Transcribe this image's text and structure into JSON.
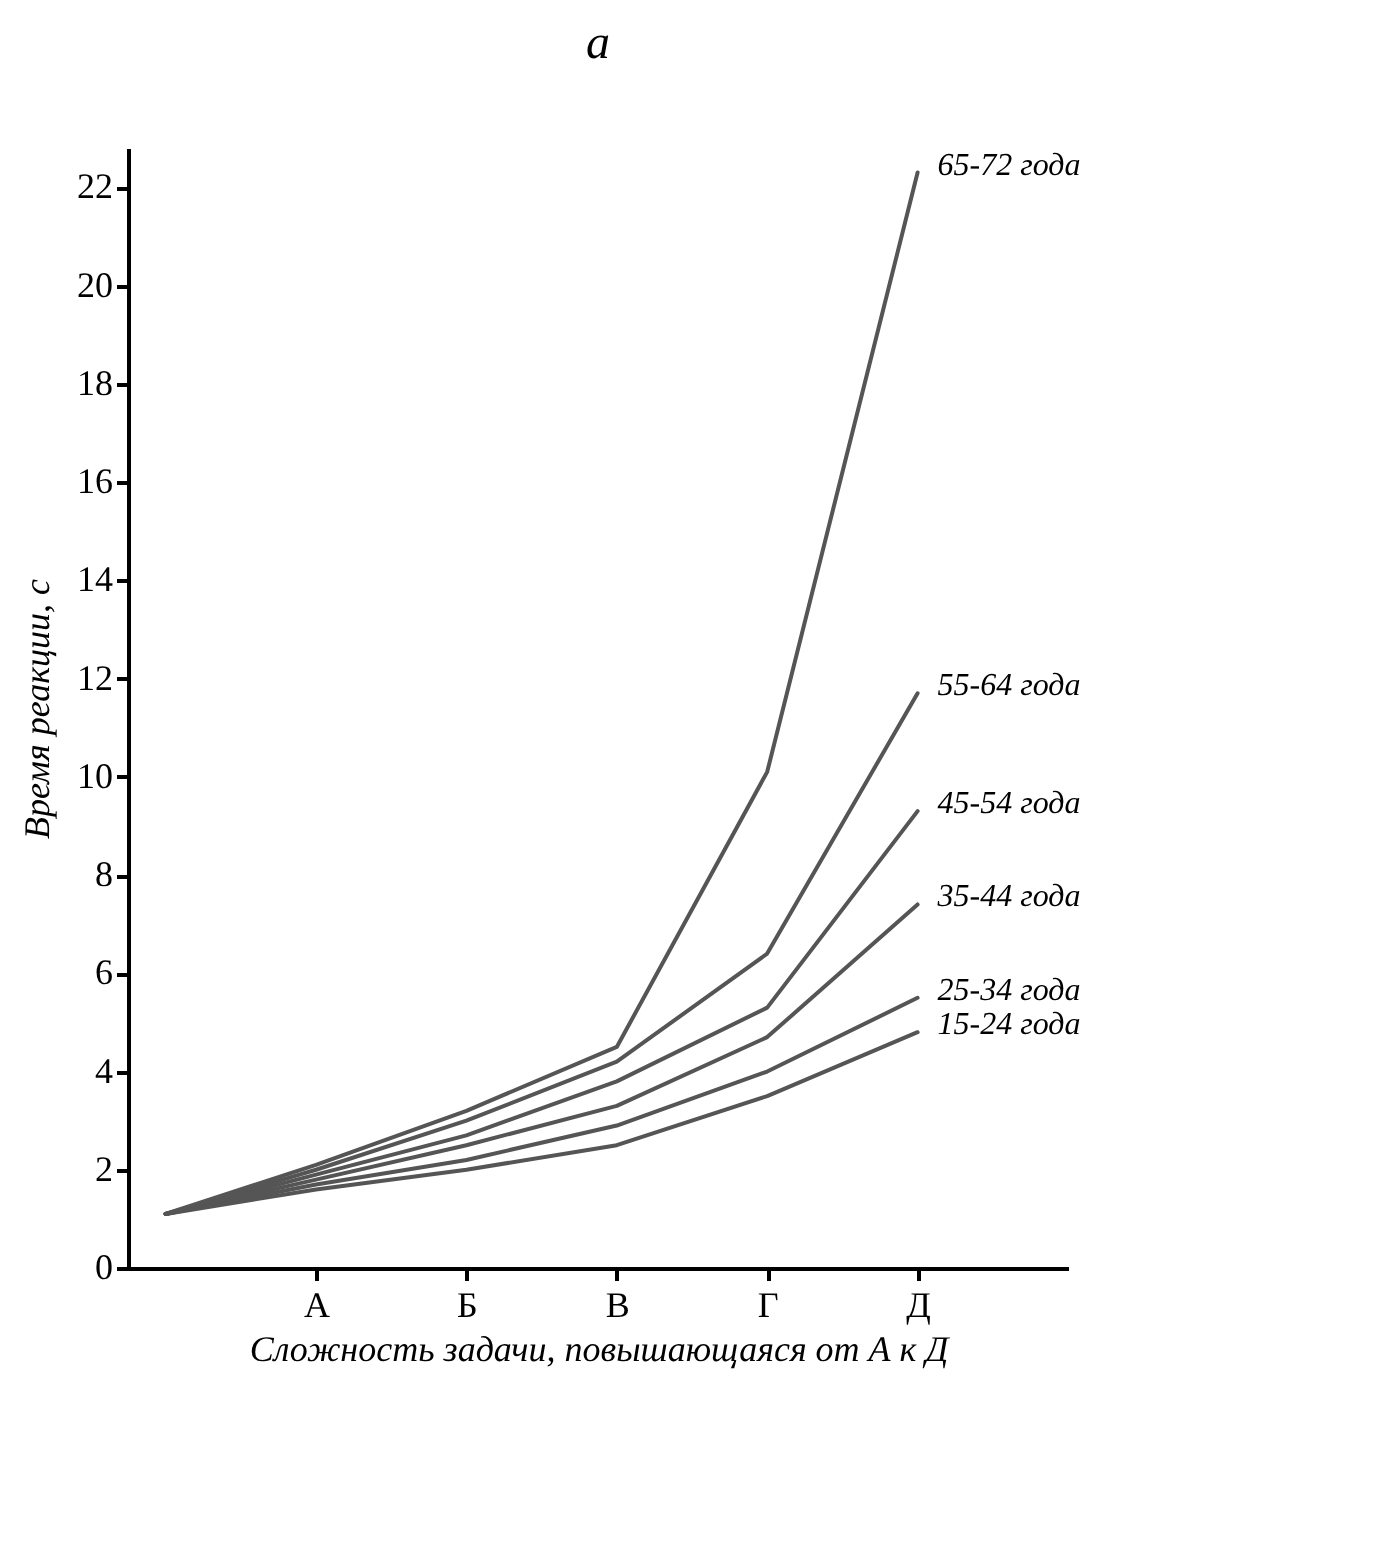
{
  "chart_data": {
    "type": "line",
    "title": "а",
    "xlabel": "Сложность задачи, повышающаяся от А к Д",
    "ylabel": "Время реакции, с",
    "categories": [
      null,
      "А",
      "Б",
      "В",
      "Г",
      "Д"
    ],
    "ylim": [
      0,
      22.8
    ],
    "yticks": [
      0,
      2,
      4,
      6,
      8,
      10,
      12,
      14,
      16,
      18,
      20,
      22
    ],
    "grid": false,
    "legend": false,
    "marker": "none",
    "line_style": "solid",
    "series": [
      {
        "name": "15-24 года",
        "color": "#555555",
        "values": [
          1.1,
          1.6,
          2.0,
          2.5,
          3.5,
          4.8
        ]
      },
      {
        "name": "25-34 года",
        "color": "#555555",
        "values": [
          1.1,
          1.7,
          2.2,
          2.9,
          4.0,
          5.5
        ]
      },
      {
        "name": "35-44 года",
        "color": "#555555",
        "values": [
          1.1,
          1.8,
          2.5,
          3.3,
          4.7,
          7.4
        ]
      },
      {
        "name": "45-54 года",
        "color": "#555555",
        "values": [
          1.1,
          1.9,
          2.7,
          3.8,
          5.3,
          9.3
        ]
      },
      {
        "name": "55-64 года",
        "color": "#555555",
        "values": [
          1.1,
          2.0,
          3.0,
          4.2,
          6.4,
          11.7
        ]
      },
      {
        "name": "65-72 года",
        "color": "#555555",
        "values": [
          1.1,
          2.1,
          3.2,
          4.5,
          10.1,
          22.3
        ]
      }
    ]
  }
}
